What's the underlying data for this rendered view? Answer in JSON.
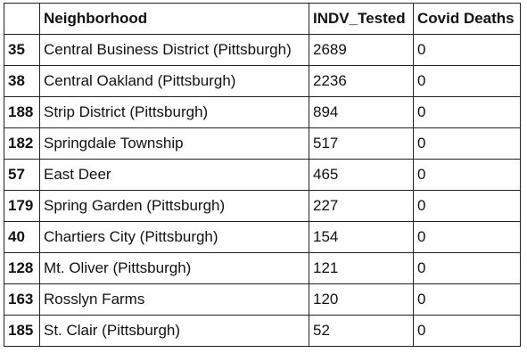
{
  "table": {
    "index_header": "",
    "columns": [
      "Neighborhood",
      "INDV_Tested",
      "Covid Deaths"
    ],
    "rows": [
      {
        "index": "35",
        "neighborhood": "Central Business District (Pittsburgh)",
        "indv_tested": "2689",
        "covid_deaths": "0"
      },
      {
        "index": "38",
        "neighborhood": "Central Oakland (Pittsburgh)",
        "indv_tested": "2236",
        "covid_deaths": "0"
      },
      {
        "index": "188",
        "neighborhood": "Strip District (Pittsburgh)",
        "indv_tested": "894",
        "covid_deaths": "0"
      },
      {
        "index": "182",
        "neighborhood": "Springdale Township",
        "indv_tested": "517",
        "covid_deaths": "0"
      },
      {
        "index": "57",
        "neighborhood": "East Deer",
        "indv_tested": "465",
        "covid_deaths": "0"
      },
      {
        "index": "179",
        "neighborhood": "Spring Garden (Pittsburgh)",
        "indv_tested": "227",
        "covid_deaths": "0"
      },
      {
        "index": "40",
        "neighborhood": "Chartiers City (Pittsburgh)",
        "indv_tested": "154",
        "covid_deaths": "0"
      },
      {
        "index": "128",
        "neighborhood": "Mt. Oliver (Pittsburgh)",
        "indv_tested": "121",
        "covid_deaths": "0"
      },
      {
        "index": "163",
        "neighborhood": "Rosslyn Farms",
        "indv_tested": "120",
        "covid_deaths": "0"
      },
      {
        "index": "185",
        "neighborhood": "St. Clair (Pittsburgh)",
        "indv_tested": "52",
        "covid_deaths": "0"
      }
    ]
  }
}
